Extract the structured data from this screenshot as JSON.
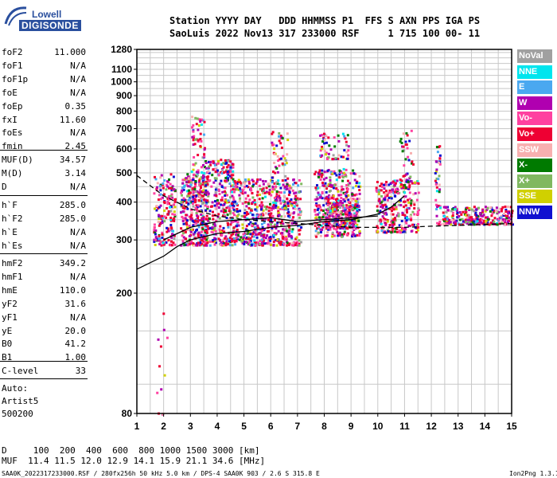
{
  "logo": {
    "line1": "Lowell",
    "line2": "DIGISONDE"
  },
  "header": {
    "labels": "Station YYYY DAY   DDD HHMMSS P1  FFS S AXN PPS IGA PS",
    "values": "SaoLuis 2022 Nov13 317 233000 RSF     1 715 100 00- 11"
  },
  "params_group1": [
    {
      "name": "foF2",
      "value": "11.000"
    },
    {
      "name": "foF1",
      "value": "N/A"
    },
    {
      "name": "foF1p",
      "value": "N/A"
    },
    {
      "name": "foE",
      "value": "N/A"
    },
    {
      "name": "foEp",
      "value": "0.35"
    },
    {
      "name": "fxI",
      "value": "11.60"
    },
    {
      "name": "foEs",
      "value": "N/A"
    },
    {
      "name": "fmin",
      "value": "2.45"
    }
  ],
  "params_group2": [
    {
      "name": "MUF(D)",
      "value": "34.57"
    },
    {
      "name": "M(D)",
      "value": "3.14"
    },
    {
      "name": "D",
      "value": "N/A"
    }
  ],
  "params_group3": [
    {
      "name": "h`F",
      "value": "285.0"
    },
    {
      "name": "h`F2",
      "value": "285.0"
    },
    {
      "name": "h`E",
      "value": "N/A"
    },
    {
      "name": "h`Es",
      "value": "N/A"
    }
  ],
  "params_group4": [
    {
      "name": "hmF2",
      "value": "349.2"
    },
    {
      "name": "hmF1",
      "value": "N/A"
    },
    {
      "name": "hmE",
      "value": "110.0"
    },
    {
      "name": "yF2",
      "value": "31.6"
    },
    {
      "name": "yF1",
      "value": "N/A"
    },
    {
      "name": "yE",
      "value": "20.0"
    },
    {
      "name": "B0",
      "value": "41.2"
    },
    {
      "name": "B1",
      "value": "1.00"
    }
  ],
  "params_group5": [
    {
      "name": "C-level",
      "value": "33"
    }
  ],
  "auto": {
    "line1": "Auto:",
    "line2": "Artist5",
    "line3": "500200"
  },
  "legend": [
    {
      "label": "NoVal",
      "color": "#a0a0a0"
    },
    {
      "label": "NNE",
      "color": "#00e5ee"
    },
    {
      "label": "E",
      "color": "#4aa8f0"
    },
    {
      "label": "W",
      "color": "#b000b0"
    },
    {
      "label": "Vo-",
      "color": "#ff40a0"
    },
    {
      "label": "Vo+",
      "color": "#ee0033"
    },
    {
      "label": "SSW",
      "color": "#f8b0b0"
    },
    {
      "label": "X-",
      "color": "#007a00"
    },
    {
      "label": "X+",
      "color": "#80b860"
    },
    {
      "label": "SSE",
      "color": "#d0d000"
    },
    {
      "label": "NNW",
      "color": "#1010d0"
    }
  ],
  "bottom": {
    "distance_row": "D     100  200  400  600  800 1000 1500 3000 [km]",
    "muf_row": "MUF  11.4 11.5 12.0 12.9 14.1 15.9 21.1 34.6 [MHz]"
  },
  "footer": {
    "left": "SAA0K_2022317233000.RSF / 280fx256h 50 kHz 5.0 km / DPS-4 SAA0K 903 / 2.6 S 315.8 E",
    "right": "Ion2Png 1.3.17"
  },
  "chart_data": {
    "type": "scatter",
    "x_ticks": [
      1,
      2,
      3,
      4,
      5,
      6,
      7,
      8,
      9,
      10,
      11,
      12,
      13,
      14,
      15
    ],
    "y_ticks": [
      80,
      200,
      300,
      400,
      500,
      600,
      700,
      800,
      900,
      1000,
      1100,
      1280
    ],
    "xlim": [
      1,
      15
    ],
    "ylim": [
      80,
      1280
    ],
    "y_scale": "log",
    "grid": true,
    "legend_position": "right",
    "traces": [
      {
        "style": "solid",
        "x": [
          1,
          2,
          2.5,
          3,
          4,
          5,
          6,
          7,
          8,
          9,
          10,
          10.5,
          11
        ],
        "y": [
          240,
          265,
          285,
          300,
          315,
          320,
          330,
          335,
          345,
          350,
          365,
          385,
          420
        ]
      },
      {
        "style": "solid",
        "x": [
          2,
          3,
          4,
          5,
          6,
          6.5,
          7,
          8,
          9,
          10
        ],
        "y": [
          300,
          330,
          345,
          350,
          355,
          350,
          345,
          350,
          355,
          360
        ]
      },
      {
        "style": "dashed",
        "x": [
          1,
          2,
          3,
          4,
          5,
          6,
          7,
          8,
          9,
          10,
          11,
          12,
          13,
          15
        ],
        "y": [
          490,
          420,
          380,
          360,
          350,
          345,
          340,
          335,
          330,
          330,
          330,
          333,
          335,
          340
        ]
      }
    ],
    "clusters": [
      {
        "x": [
          1.6,
          2.4
        ],
        "y": [
          290,
          500
        ],
        "n": 180
      },
      {
        "x": [
          2.6,
          3.6
        ],
        "y": [
          290,
          500
        ],
        "n": 320
      },
      {
        "x": [
          3.0,
          3.5
        ],
        "y": [
          420,
          780
        ],
        "n": 90
      },
      {
        "x": [
          3.5,
          4.6
        ],
        "y": [
          290,
          560
        ],
        "n": 320
      },
      {
        "x": [
          4.5,
          5.7
        ],
        "y": [
          290,
          480
        ],
        "n": 280
      },
      {
        "x": [
          5.6,
          7.1
        ],
        "y": [
          290,
          480
        ],
        "n": 330
      },
      {
        "x": [
          6.0,
          6.6
        ],
        "y": [
          380,
          700
        ],
        "n": 80
      },
      {
        "x": [
          7.6,
          9.3
        ],
        "y": [
          310,
          520
        ],
        "n": 360
      },
      {
        "x": [
          7.8,
          8.9
        ],
        "y": [
          560,
          680
        ],
        "n": 60
      },
      {
        "x": [
          8.0,
          9.2
        ],
        "y": [
          330,
          430
        ],
        "n": 200
      },
      {
        "x": [
          9.9,
          11.5
        ],
        "y": [
          320,
          480
        ],
        "n": 280
      },
      {
        "x": [
          10.8,
          11.3
        ],
        "y": [
          450,
          700
        ],
        "n": 40
      },
      {
        "x": [
          12.1,
          12.3
        ],
        "y": [
          340,
          620
        ],
        "n": 40
      },
      {
        "x": [
          12.4,
          15.0
        ],
        "y": [
          340,
          390
        ],
        "n": 260
      },
      {
        "x": [
          1.7,
          2.1
        ],
        "y": [
          80,
          180
        ],
        "n": 12
      }
    ]
  }
}
